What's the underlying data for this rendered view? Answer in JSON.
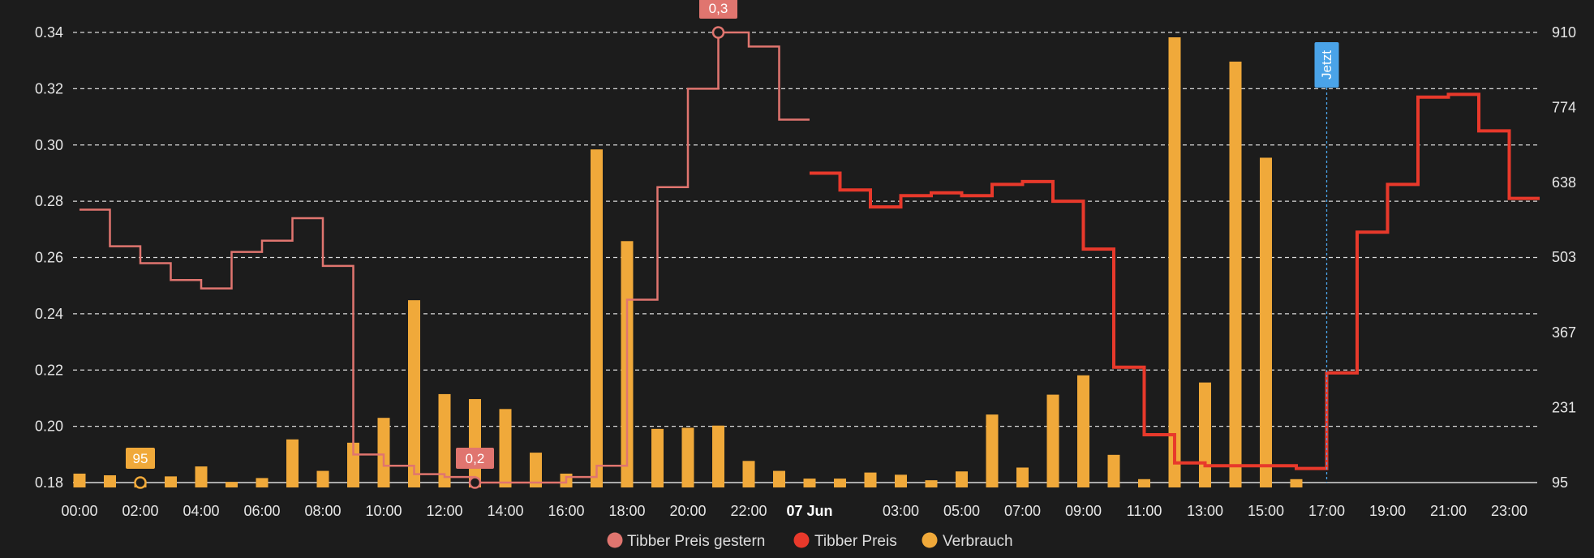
{
  "chart_data": {
    "type": "bar",
    "colors": {
      "background": "#1c1c1c",
      "gestern": "#e0756f",
      "heute": "#e8392b",
      "verbrauch": "#f0a93a",
      "now_line": "#4aa3e8",
      "grid": "#d9d9d9"
    },
    "x_ticks": [
      {
        "h": 0,
        "label": "00:00"
      },
      {
        "h": 2,
        "label": "02:00"
      },
      {
        "h": 4,
        "label": "04:00"
      },
      {
        "h": 6,
        "label": "06:00"
      },
      {
        "h": 8,
        "label": "08:00"
      },
      {
        "h": 10,
        "label": "10:00"
      },
      {
        "h": 12,
        "label": "12:00"
      },
      {
        "h": 14,
        "label": "14:00"
      },
      {
        "h": 16,
        "label": "16:00"
      },
      {
        "h": 18,
        "label": "18:00"
      },
      {
        "h": 20,
        "label": "20:00"
      },
      {
        "h": 22,
        "label": "22:00"
      },
      {
        "h": 24,
        "label": "07 Jun",
        "bold": true
      },
      {
        "h": 27,
        "label": "03:00"
      },
      {
        "h": 29,
        "label": "05:00"
      },
      {
        "h": 31,
        "label": "07:00"
      },
      {
        "h": 33,
        "label": "09:00"
      },
      {
        "h": 35,
        "label": "11:00"
      },
      {
        "h": 37,
        "label": "13:00"
      },
      {
        "h": 39,
        "label": "15:00"
      },
      {
        "h": 41,
        "label": "17:00"
      },
      {
        "h": 43,
        "label": "19:00"
      },
      {
        "h": 45,
        "label": "21:00"
      },
      {
        "h": 47,
        "label": "23:00"
      }
    ],
    "y_left": {
      "min": 0.18,
      "max": 0.34,
      "ticks": [
        "0.18",
        "0.20",
        "0.22",
        "0.24",
        "0.26",
        "0.28",
        "0.30",
        "0.32",
        "0.34"
      ]
    },
    "y_right": {
      "min": 95,
      "max": 910,
      "ticks": [
        "95",
        "231",
        "367",
        "503",
        "638",
        "774",
        "910"
      ]
    },
    "legend": [
      {
        "key": "gestern",
        "label": "Tibber Preis gestern"
      },
      {
        "key": "heute",
        "label": "Tibber Preis"
      },
      {
        "key": "verbrauch",
        "label": "Verbrauch"
      }
    ],
    "series": [
      {
        "key": "gestern",
        "name": "Tibber Preis gestern",
        "axis": "left",
        "step_start_hour": 0,
        "values": [
          0.277,
          0.264,
          0.258,
          0.252,
          0.249,
          0.262,
          0.266,
          0.274,
          0.257,
          0.19,
          0.186,
          0.183,
          0.182,
          0.18,
          0.18,
          0.18,
          0.182,
          0.186,
          0.245,
          0.285,
          0.32,
          0.34,
          0.335,
          0.309
        ]
      },
      {
        "key": "heute",
        "name": "Tibber Preis",
        "axis": "left",
        "step_start_hour": 24,
        "values": [
          0.29,
          0.284,
          0.278,
          0.282,
          0.283,
          0.282,
          0.286,
          0.287,
          0.28,
          0.263,
          0.221,
          0.197,
          0.187,
          0.186,
          0.186,
          0.186,
          0.185,
          0.219,
          0.269,
          0.286,
          0.317,
          0.318,
          0.305,
          0.281
        ]
      },
      {
        "key": "verbrauch",
        "name": "Verbrauch",
        "axis": "right",
        "bar_start_hour": 0,
        "values": [
          120,
          117,
          95,
          115,
          133,
          105,
          112,
          182,
          125,
          176,
          221,
          434,
          264,
          255,
          237,
          158,
          120,
          707,
          541,
          201,
          203,
          207,
          143,
          125,
          111,
          111,
          122,
          118,
          108,
          124,
          227,
          131,
          263,
          298,
          154,
          110,
          910,
          285,
          866,
          692,
          110
        ]
      }
    ],
    "annotations": [
      {
        "label": "0,3",
        "series": "gestern",
        "h": 21,
        "value": 0.34,
        "color": "#e0756f"
      },
      {
        "label": "0,2",
        "series": "gestern",
        "h": 13,
        "value": 0.18,
        "color": "#e0756f"
      },
      {
        "label": "95",
        "series": "verbrauch",
        "h": 2,
        "value": 95,
        "color": "#f0a93a"
      }
    ],
    "now_marker": {
      "label": "Jetzt",
      "h": 41.0
    }
  }
}
